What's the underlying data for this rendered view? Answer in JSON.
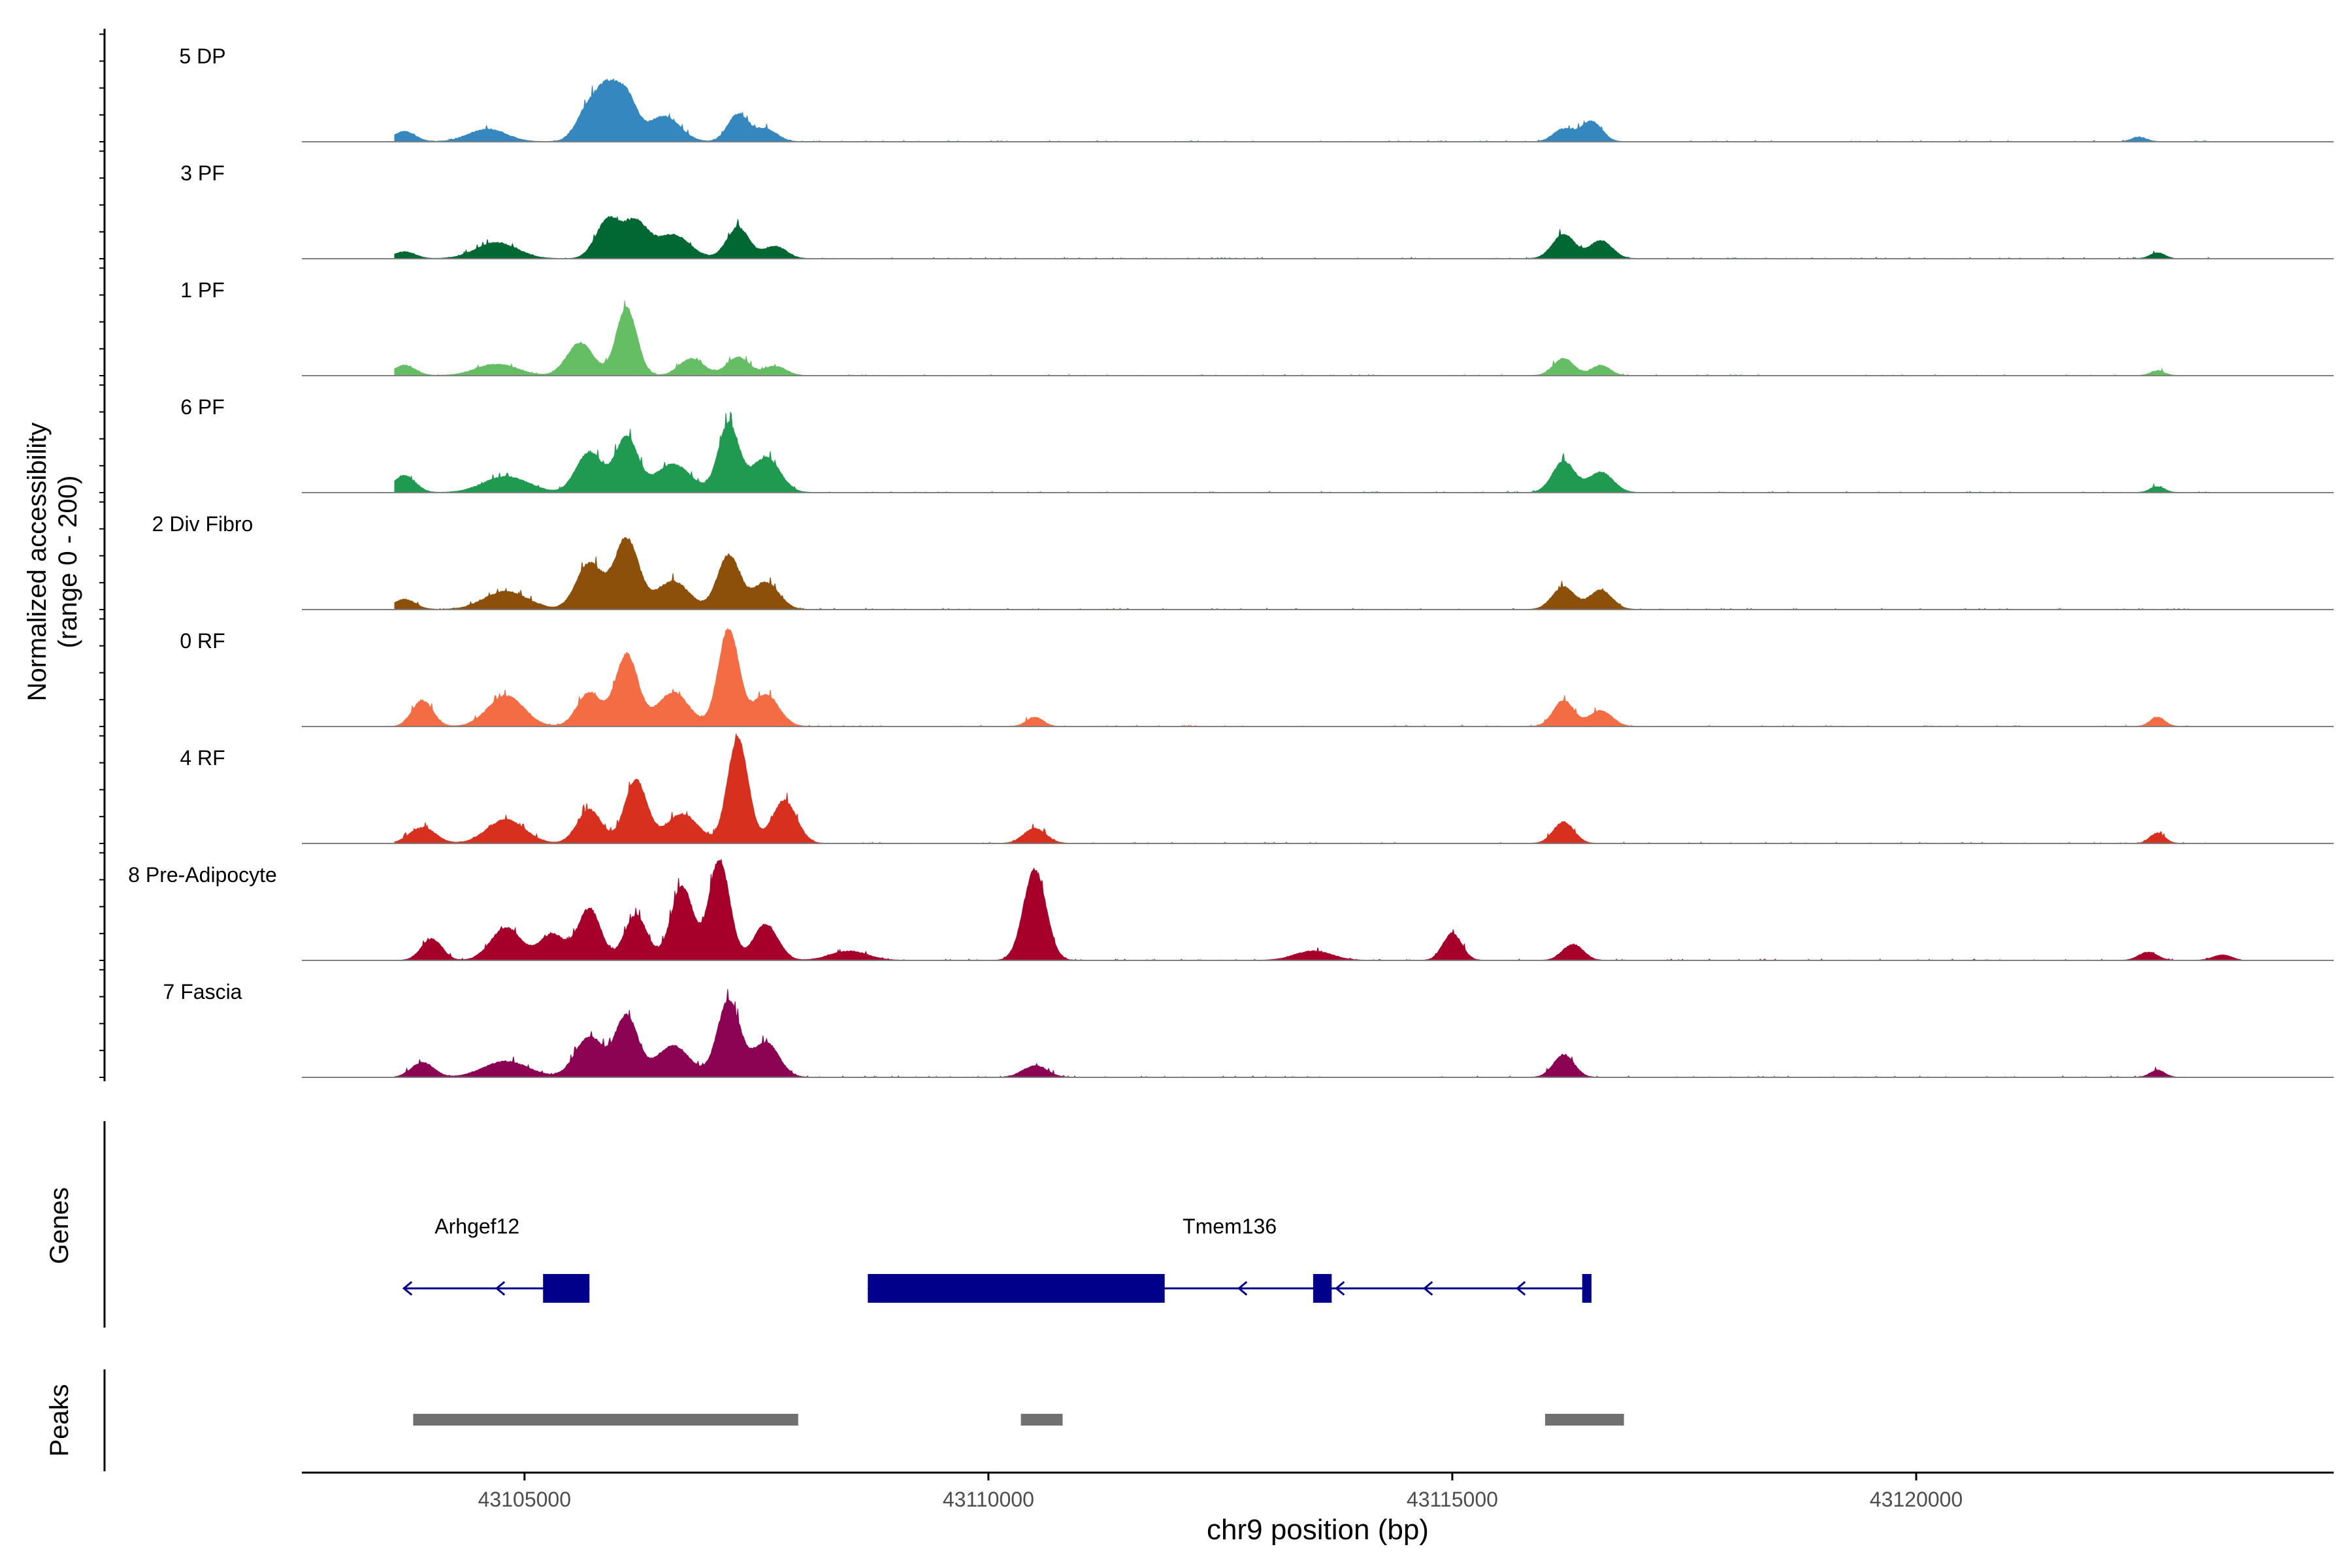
{
  "chart_data": {
    "type": "area",
    "title": "",
    "ylabel_line1": "Normalized accessibility",
    "ylabel_line2": "(range 0 - 200)",
    "xlabel": "chr9 position (bp)",
    "xlim": [
      43102600,
      43124500
    ],
    "x_ticks": [
      43105000,
      43110000,
      43115000,
      43120000
    ],
    "x_tick_labels": [
      "43105000",
      "43110000",
      "43115000",
      "43120000"
    ],
    "ylim": [
      0,
      200
    ],
    "tracks": [
      {
        "name": "5 DP",
        "color": "#3587c0",
        "peaks": [
          [
            43103700,
            18,
            120
          ],
          [
            43104600,
            22,
            200
          ],
          [
            43105700,
            62,
            130
          ],
          [
            43105900,
            75,
            110
          ],
          [
            43106100,
            78,
            110
          ],
          [
            43106500,
            45,
            170
          ],
          [
            43107300,
            48,
            110
          ],
          [
            43107600,
            22,
            120
          ],
          [
            43116200,
            22,
            110
          ],
          [
            43116500,
            36,
            110
          ],
          [
            43122400,
            8,
            80
          ]
        ]
      },
      {
        "name": "3 PF",
        "color": "#016833",
        "peaks": [
          [
            43103700,
            12,
            120
          ],
          [
            43104700,
            28,
            220
          ],
          [
            43105900,
            68,
            130
          ],
          [
            43106200,
            62,
            130
          ],
          [
            43106600,
            42,
            180
          ],
          [
            43107300,
            55,
            120
          ],
          [
            43107700,
            22,
            120
          ],
          [
            43116200,
            43,
            120
          ],
          [
            43116600,
            32,
            120
          ],
          [
            43122600,
            10,
            80
          ]
        ]
      },
      {
        "name": "1 PF",
        "color": "#66be64",
        "peaks": [
          [
            43103700,
            18,
            120
          ],
          [
            43104700,
            20,
            220
          ],
          [
            43105600,
            58,
            140
          ],
          [
            43106100,
            120,
            110
          ],
          [
            43106800,
            30,
            130
          ],
          [
            43107300,
            32,
            120
          ],
          [
            43107700,
            16,
            120
          ],
          [
            43116200,
            30,
            110
          ],
          [
            43116600,
            18,
            100
          ],
          [
            43122600,
            8,
            80
          ]
        ]
      },
      {
        "name": "6 PF",
        "color": "#219a51",
        "peaks": [
          [
            43103700,
            30,
            120
          ],
          [
            43104800,
            28,
            240
          ],
          [
            43105700,
            72,
            140
          ],
          [
            43106100,
            98,
            120
          ],
          [
            43106600,
            50,
            190
          ],
          [
            43107200,
            122,
            110
          ],
          [
            43107600,
            62,
            150
          ],
          [
            43116200,
            55,
            120
          ],
          [
            43116600,
            36,
            130
          ],
          [
            43122600,
            10,
            80
          ]
        ]
      },
      {
        "name": "2 Div Fibro",
        "color": "#8c500b",
        "peaks": [
          [
            43103700,
            18,
            120
          ],
          [
            43104800,
            32,
            230
          ],
          [
            43105700,
            82,
            140
          ],
          [
            43106100,
            126,
            130
          ],
          [
            43106600,
            50,
            170
          ],
          [
            43107200,
            96,
            120
          ],
          [
            43107600,
            48,
            140
          ],
          [
            43116200,
            40,
            120
          ],
          [
            43116600,
            34,
            120
          ]
        ]
      },
      {
        "name": "0 RF",
        "color": "#f36c43",
        "peaks": [
          [
            43103900,
            46,
            110
          ],
          [
            43104800,
            55,
            190
          ],
          [
            43105700,
            60,
            130
          ],
          [
            43106100,
            128,
            120
          ],
          [
            43106600,
            60,
            170
          ],
          [
            43107200,
            174,
            110
          ],
          [
            43107600,
            56,
            140
          ],
          [
            43110500,
            16,
            90
          ],
          [
            43116200,
            46,
            110
          ],
          [
            43116600,
            28,
            120
          ],
          [
            43122600,
            16,
            80
          ]
        ]
      },
      {
        "name": "4 RF",
        "color": "#d7301f",
        "peaks": [
          [
            43103900,
            28,
            140
          ],
          [
            43104800,
            42,
            200
          ],
          [
            43105700,
            60,
            130
          ],
          [
            43106200,
            112,
            120
          ],
          [
            43106700,
            52,
            170
          ],
          [
            43107300,
            188,
            110
          ],
          [
            43107800,
            76,
            130
          ],
          [
            43110500,
            26,
            120
          ],
          [
            43116200,
            38,
            110
          ],
          [
            43122600,
            18,
            80
          ]
        ]
      },
      {
        "name": "8 Pre-Adipocyte",
        "color": "#a6002a",
        "peaks": [
          [
            43104000,
            38,
            110
          ],
          [
            43104800,
            58,
            160
          ],
          [
            43105300,
            46,
            140
          ],
          [
            43105700,
            92,
            120
          ],
          [
            43106200,
            80,
            120
          ],
          [
            43106700,
            130,
            120
          ],
          [
            43107100,
            180,
            110
          ],
          [
            43107600,
            64,
            130
          ],
          [
            43108500,
            16,
            200
          ],
          [
            43110500,
            162,
            120
          ],
          [
            43113500,
            16,
            200
          ],
          [
            43115000,
            48,
            100
          ],
          [
            43116300,
            28,
            110
          ],
          [
            43122500,
            14,
            100
          ],
          [
            43123300,
            10,
            100
          ]
        ]
      },
      {
        "name": "7 Fascia",
        "color": "#8c0353",
        "peaks": [
          [
            43103900,
            26,
            120
          ],
          [
            43104800,
            28,
            240
          ],
          [
            43105700,
            72,
            150
          ],
          [
            43106100,
            108,
            120
          ],
          [
            43106600,
            56,
            180
          ],
          [
            43107200,
            136,
            120
          ],
          [
            43107600,
            62,
            140
          ],
          [
            43110500,
            20,
            130
          ],
          [
            43116200,
            40,
            110
          ],
          [
            43122600,
            12,
            80
          ]
        ]
      }
    ],
    "genes": [
      {
        "name": "Arhgef12",
        "strand": "-",
        "start": 43103700,
        "end": 43105700,
        "exons": [
          [
            43105200,
            43105700
          ]
        ],
        "arrows": [
          43103700,
          43104700
        ]
      },
      {
        "name": "Tmem136",
        "strand": "-",
        "start": 43108700,
        "end": 43116500,
        "exons": [
          [
            43108700,
            43111900
          ],
          [
            43113500,
            43113700
          ],
          [
            43116400,
            43116500
          ]
        ],
        "arrows": [
          43112700,
          43113750,
          43114700,
          43115700
        ]
      }
    ],
    "peaks_track": [
      {
        "start": 43103800,
        "end": 43107950
      },
      {
        "start": 43110350,
        "end": 43110800
      },
      {
        "start": 43116000,
        "end": 43116850
      }
    ],
    "panel_labels": {
      "genes": "Genes",
      "peaks": "Peaks"
    },
    "colors": {
      "gene": "#00008b",
      "peak_bar": "#707070",
      "baseline": "#7f7f7f",
      "axis": "#000000"
    }
  }
}
